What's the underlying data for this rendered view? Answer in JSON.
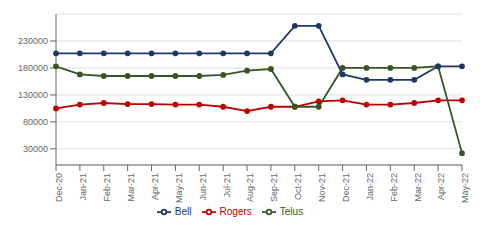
{
  "chart_data": {
    "type": "line",
    "categories": [
      "Dec-20",
      "Jan-21",
      "Feb-21",
      "Mar-21",
      "Apr-21",
      "May-21",
      "Jun-21",
      "Jul-21",
      "Aug-21",
      "Sep-21",
      "Oct-21",
      "Nov-21",
      "Dec-21",
      "Jan-22",
      "Feb-22",
      "Mar-22",
      "Apr-22",
      "May-22"
    ],
    "series": [
      {
        "name": "Rogers",
        "color": "#c00000",
        "values": [
          105000,
          112000,
          115000,
          113000,
          113000,
          112000,
          112000,
          108000,
          100000,
          108000,
          108000,
          118000,
          120000,
          112000,
          112000,
          115000,
          120000,
          120000
        ]
      },
      {
        "name": "Telus",
        "color": "#375623",
        "values": [
          183000,
          168000,
          165000,
          165000,
          165000,
          165000,
          165000,
          167000,
          175000,
          178000,
          108000,
          108000,
          180000,
          180000,
          180000,
          180000,
          183000,
          22000
        ]
      },
      {
        "name": "Bell",
        "color": "#1f3864",
        "values": [
          207000,
          207000,
          207000,
          207000,
          207000,
          207000,
          207000,
          207000,
          207000,
          207000,
          258000,
          258000,
          168000,
          158000,
          158000,
          158000,
          183000,
          183000
        ]
      }
    ],
    "ylim": [
      0,
      280000
    ],
    "yticks": [
      30000,
      80000,
      130000,
      180000,
      230000
    ],
    "grid": true,
    "legend": "bottom",
    "marker": "circle",
    "line_style": "solid"
  }
}
